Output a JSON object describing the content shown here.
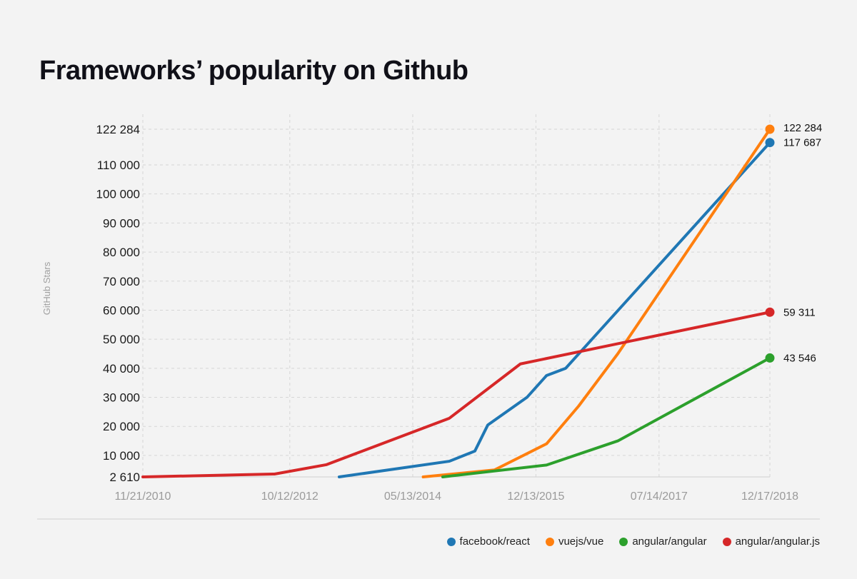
{
  "chart_data": {
    "type": "line",
    "title": "Frameworks’ popularity on Github",
    "ylabel": "GitHub Stars",
    "xlabel": "",
    "grid": true,
    "legend_position": "bottom-right",
    "x_ticks": [
      "11/21/2010",
      "10/12/2012",
      "05/13/2014",
      "12/13/2015",
      "07/14/2017",
      "12/17/2018"
    ],
    "y_ticks": [
      2610,
      10000,
      20000,
      30000,
      40000,
      50000,
      60000,
      70000,
      80000,
      90000,
      100000,
      110000,
      122284
    ],
    "y_tick_labels": [
      "2 610",
      "10 000",
      "20 000",
      "30 000",
      "40 000",
      "50 000",
      "60 000",
      "70 000",
      "80 000",
      "90 000",
      "100 000",
      "110 000",
      "122 284"
    ],
    "xlim": [
      "2010-11-21",
      "2018-12-17"
    ],
    "ylim": [
      2610,
      122284
    ],
    "series": [
      {
        "name": "facebook/react",
        "color": "#1f77b4",
        "end_label": "117 687",
        "points": [
          [
            "2013-06-01",
            2610
          ],
          [
            "2014-11-01",
            8000
          ],
          [
            "2015-03-01",
            11500
          ],
          [
            "2015-05-01",
            20500
          ],
          [
            "2015-11-01",
            30000
          ],
          [
            "2016-02-01",
            37500
          ],
          [
            "2016-05-01",
            40000
          ],
          [
            "2018-12-17",
            117687
          ]
        ]
      },
      {
        "name": "vuejs/vue",
        "color": "#ff7f0e",
        "end_label": "122 284",
        "points": [
          [
            "2014-07-01",
            2610
          ],
          [
            "2015-06-01",
            5000
          ],
          [
            "2016-02-01",
            14000
          ],
          [
            "2016-07-01",
            27000
          ],
          [
            "2017-01-01",
            45000
          ],
          [
            "2018-12-17",
            122284
          ]
        ]
      },
      {
        "name": "angular/angular",
        "color": "#2ca02c",
        "end_label": "43 546",
        "points": [
          [
            "2014-10-01",
            2610
          ],
          [
            "2016-02-01",
            6700
          ],
          [
            "2017-01-01",
            15000
          ],
          [
            "2018-12-17",
            43546
          ]
        ]
      },
      {
        "name": "angular/angular.js",
        "color": "#d62728",
        "end_label": "59 311",
        "points": [
          [
            "2010-11-21",
            2610
          ],
          [
            "2012-08-01",
            3600
          ],
          [
            "2013-04-01",
            6800
          ],
          [
            "2014-11-01",
            22800
          ],
          [
            "2015-10-01",
            41500
          ],
          [
            "2018-12-17",
            59311
          ]
        ]
      }
    ]
  }
}
